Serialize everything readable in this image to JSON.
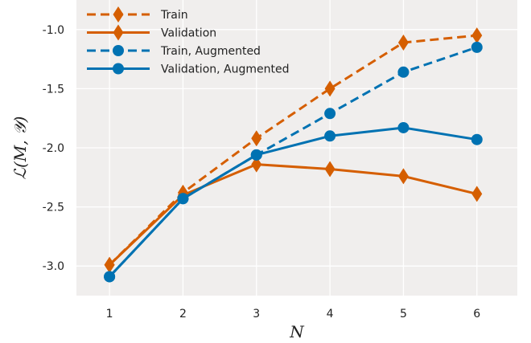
{
  "chart_data": {
    "type": "line",
    "title": "",
    "xlabel": "N",
    "ylabel": "ℒ(M, 𝒴)",
    "x": [
      1,
      2,
      3,
      4,
      5,
      6
    ],
    "xlim": [
      0.55,
      6.55
    ],
    "ylim": [
      -3.25,
      -0.75
    ],
    "xticks": [
      "1",
      "2",
      "3",
      "4",
      "5",
      "6"
    ],
    "yticks": [
      "-3.0",
      "-2.5",
      "-2.0",
      "-1.5",
      "-1.0"
    ],
    "grid": true,
    "legend_position": "top-left",
    "series": [
      {
        "name": "Train",
        "values": [
          -2.99,
          -2.38,
          -1.92,
          -1.5,
          -1.11,
          -1.05
        ],
        "color": "#d55e00",
        "dash": true,
        "marker": "diamond"
      },
      {
        "name": "Validation",
        "values": [
          -2.99,
          -2.4,
          -2.14,
          -2.18,
          -2.24,
          -2.39
        ],
        "color": "#d55e00",
        "dash": false,
        "marker": "diamond"
      },
      {
        "name": "Train, Augmented",
        "values": [
          -3.09,
          -2.43,
          -2.06,
          -1.71,
          -1.36,
          -1.15
        ],
        "color": "#0072b2",
        "dash": true,
        "marker": "circle"
      },
      {
        "name": "Validation, Augmented",
        "values": [
          -3.09,
          -2.43,
          -2.06,
          -1.9,
          -1.83,
          -1.93
        ],
        "color": "#0072b2",
        "dash": false,
        "marker": "circle"
      }
    ]
  }
}
